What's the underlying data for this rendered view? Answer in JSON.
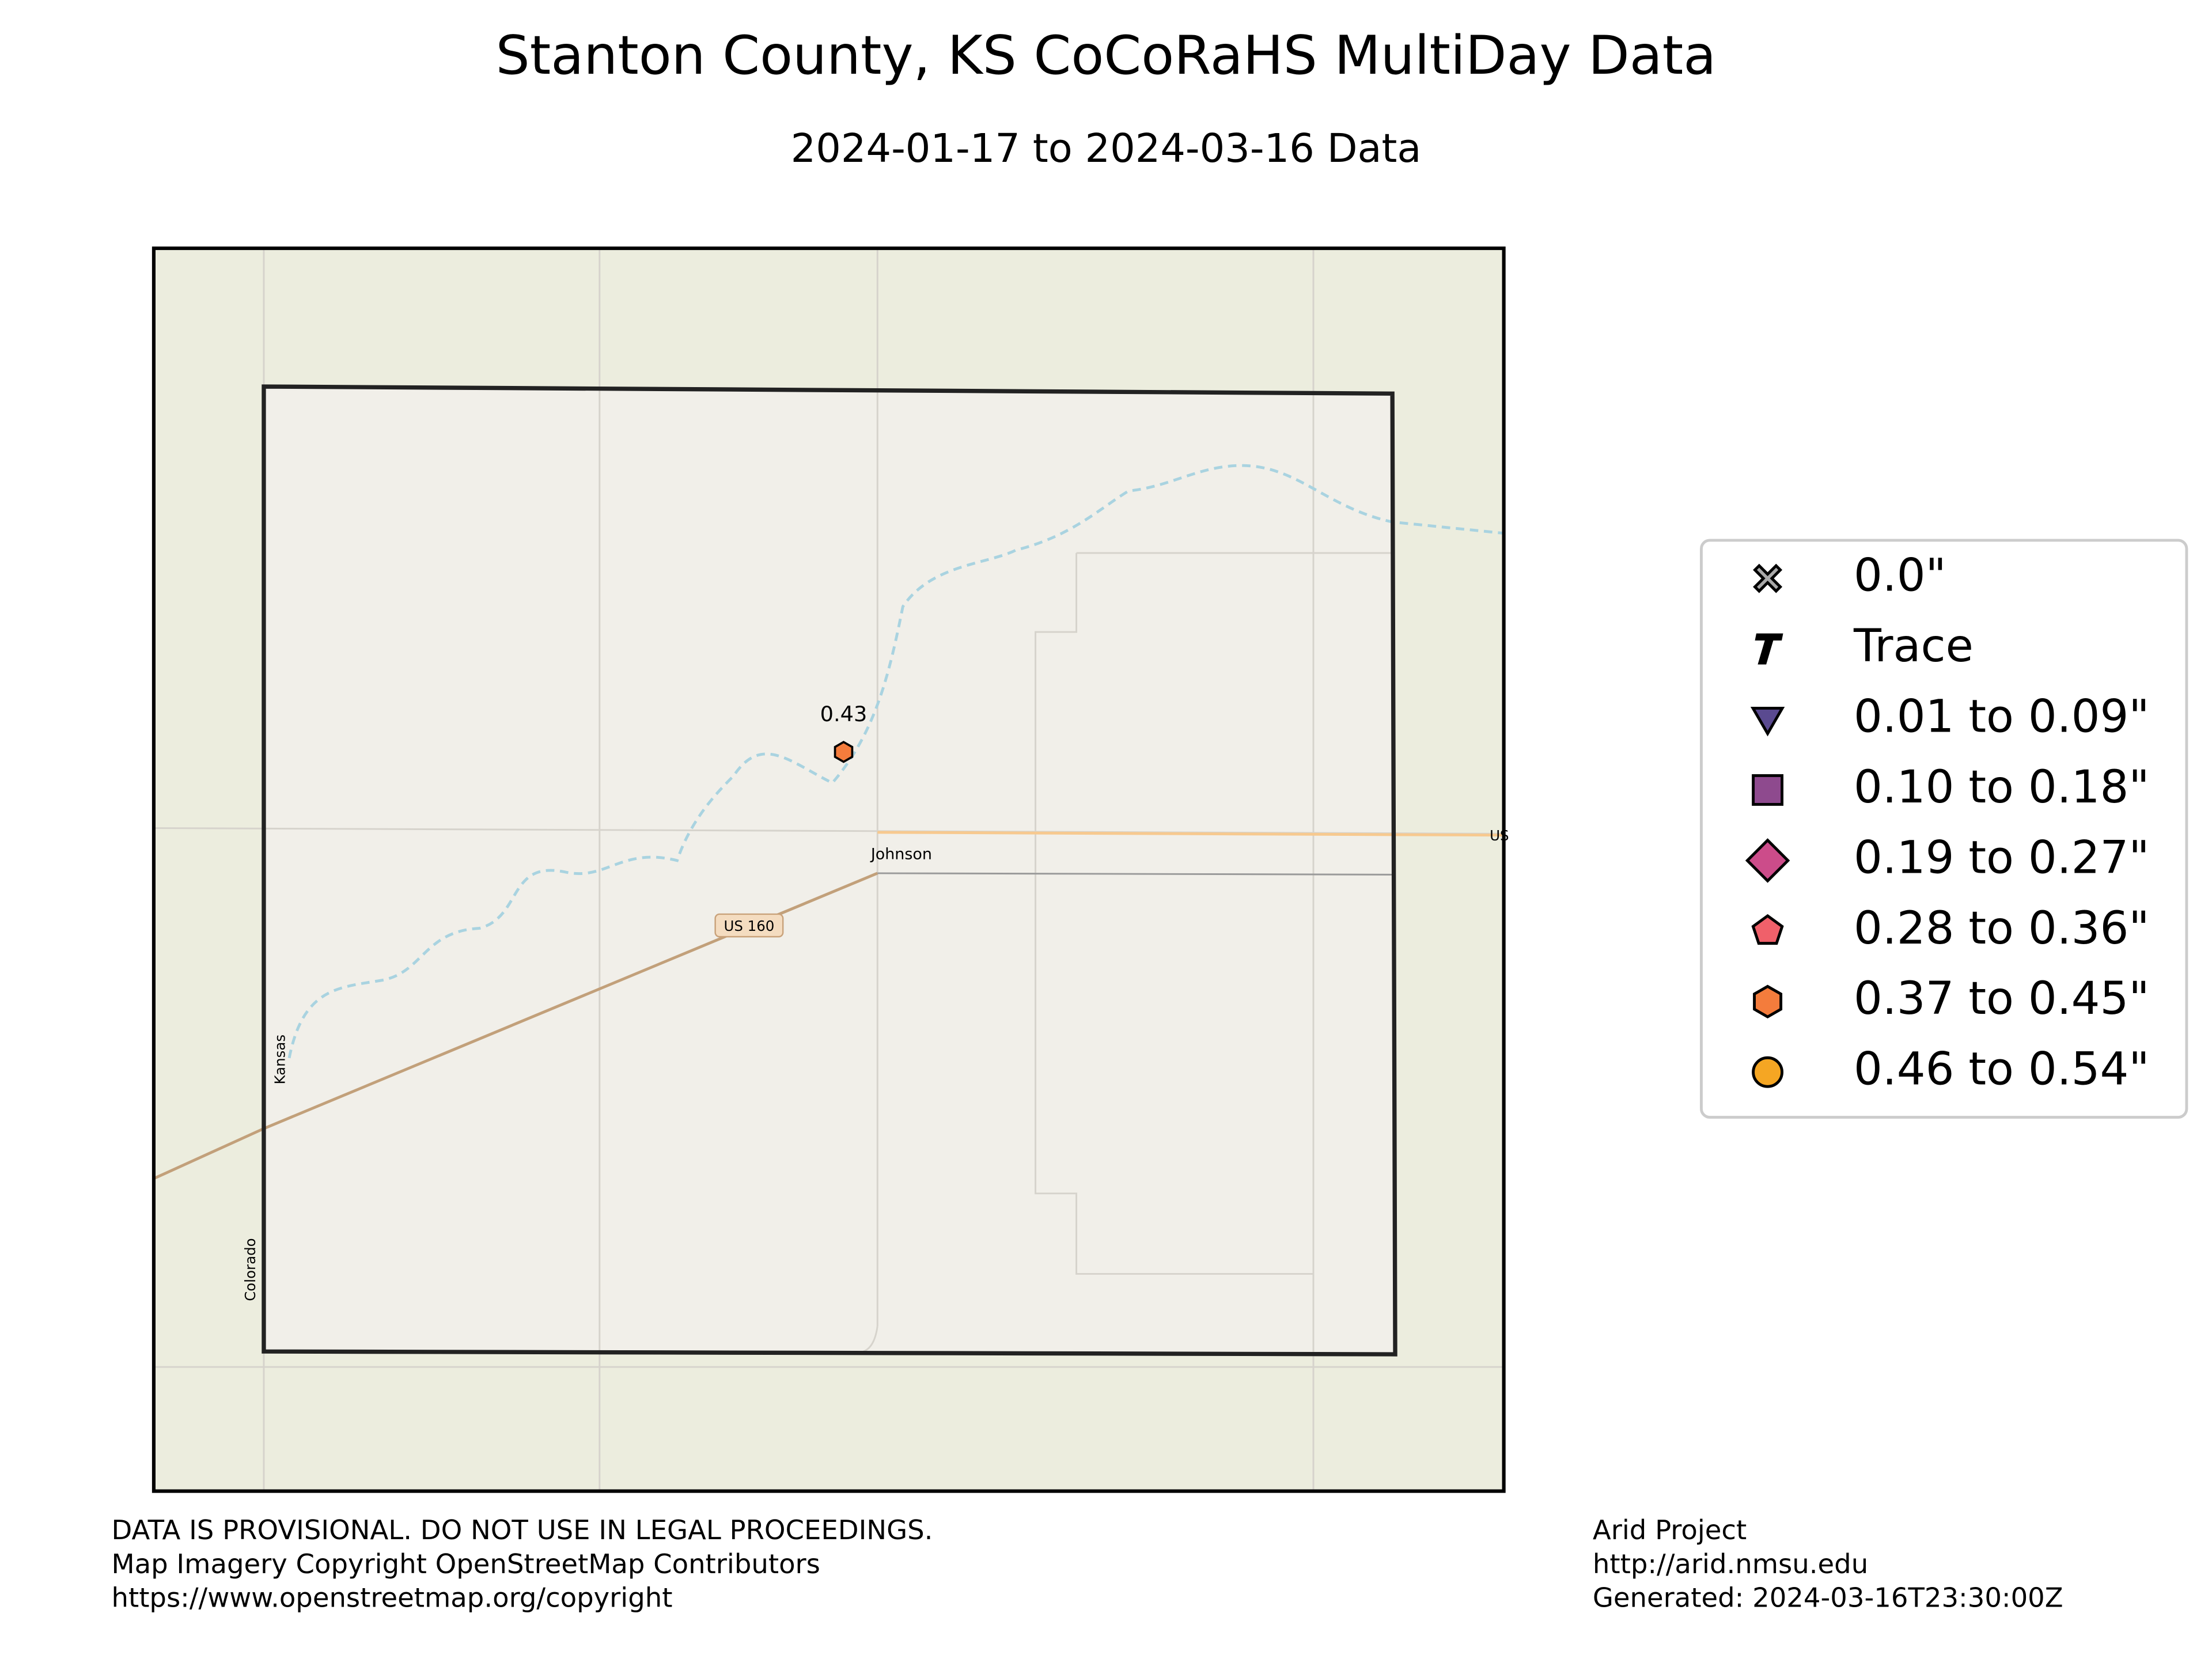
{
  "header": {
    "title": "Stanton County, KS CoCoRaHS MultiDay Data",
    "subtitle": "2024-01-17 to 2024-03-16 Data"
  },
  "map": {
    "labels": [
      "Johnson",
      "US 160",
      "Kansas",
      "Colorado",
      "US"
    ],
    "stations": [
      {
        "value": 0.43,
        "color": "#f47c3c"
      }
    ]
  },
  "legend": {
    "items": [
      {
        "label": "0.0\"",
        "color": "#a9a9a9"
      },
      {
        "label": "Trace",
        "color": "#000000"
      },
      {
        "label": "0.01 to 0.09\"",
        "color": "#5a4a90"
      },
      {
        "label": "0.10 to 0.18\"",
        "color": "#8e4a8e"
      },
      {
        "label": "0.19 to 0.27\"",
        "color": "#cc4c8a"
      },
      {
        "label": "0.28 to 0.36\"",
        "color": "#f0606a"
      },
      {
        "label": "0.37 to 0.45\"",
        "color": "#f47c3c"
      },
      {
        "label": "0.46 to 0.54\"",
        "color": "#f5a623"
      }
    ]
  },
  "footer": {
    "left": [
      "DATA IS PROVISIONAL. DO NOT USE IN LEGAL PROCEEDINGS.",
      "Map Imagery Copyright OpenStreetMap Contributors",
      "https://www.openstreetmap.org/copyright"
    ],
    "right": [
      "Arid Project",
      "http://arid.nmsu.edu",
      "Generated: 2024-03-16T23:30:00Z"
    ]
  }
}
